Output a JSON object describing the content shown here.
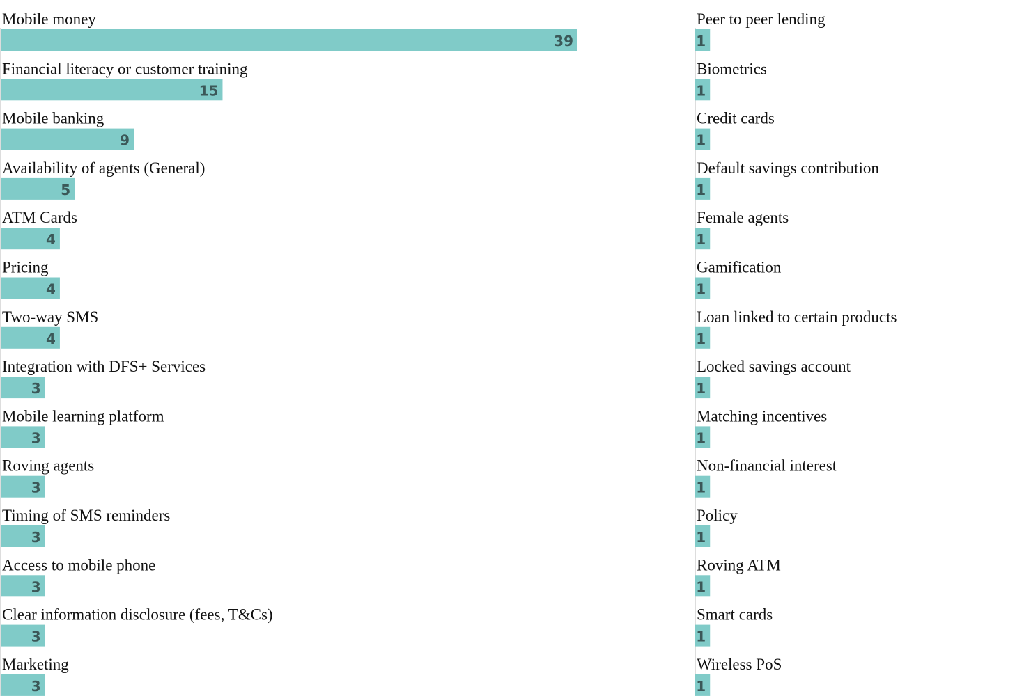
{
  "chart_data": [
    {
      "type": "bar",
      "orientation": "horizontal",
      "color": "#80cbc8",
      "categories": [
        "Mobile money",
        "Financial literacy or customer training",
        "Mobile banking",
        "Availability of agents (General)",
        "ATM Cards",
        "Pricing",
        "Two-way SMS",
        "Integration with DFS+ Services",
        "Mobile learning platform",
        "Roving agents",
        "Timing of SMS reminders",
        "Access to mobile phone",
        "Clear information disclosure (fees, T&Cs)",
        "Marketing"
      ],
      "values": [
        39,
        15,
        9,
        5,
        4,
        4,
        4,
        3,
        3,
        3,
        3,
        3,
        3,
        3
      ]
    },
    {
      "type": "bar",
      "orientation": "horizontal",
      "color": "#80cbc8",
      "categories": [
        "Peer to peer lending",
        "Biometrics",
        "Credit cards",
        "Default savings contribution",
        "Female agents",
        "Gamification",
        "Loan linked to certain products",
        "Locked savings account",
        "Matching incentives",
        "Non-financial interest",
        "Policy",
        "Roving ATM",
        "Smart cards",
        "Wireless PoS"
      ],
      "values": [
        1,
        1,
        1,
        1,
        1,
        1,
        1,
        1,
        1,
        1,
        1,
        1,
        1,
        1
      ]
    }
  ]
}
